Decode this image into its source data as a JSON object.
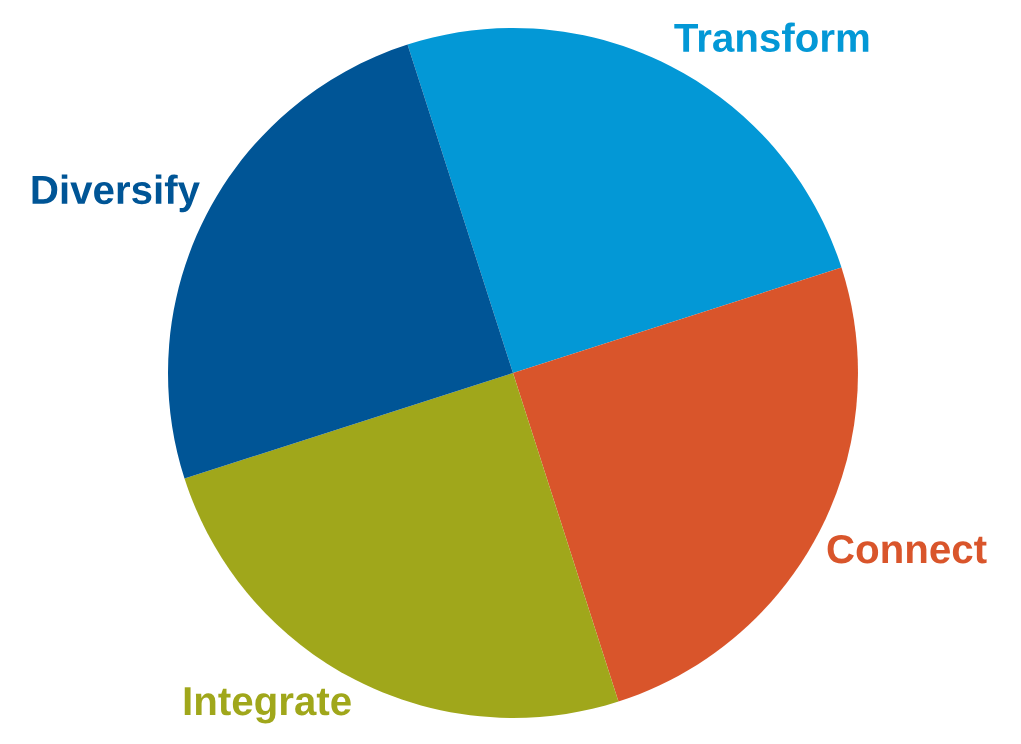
{
  "chart_data": {
    "type": "pie",
    "categories": [
      "Transform",
      "Connect",
      "Integrate",
      "Diversify"
    ],
    "values": [
      25,
      25,
      25,
      25
    ],
    "colors": [
      "#0398d6",
      "#d9552b",
      "#a0a71b",
      "#005596"
    ]
  }
}
